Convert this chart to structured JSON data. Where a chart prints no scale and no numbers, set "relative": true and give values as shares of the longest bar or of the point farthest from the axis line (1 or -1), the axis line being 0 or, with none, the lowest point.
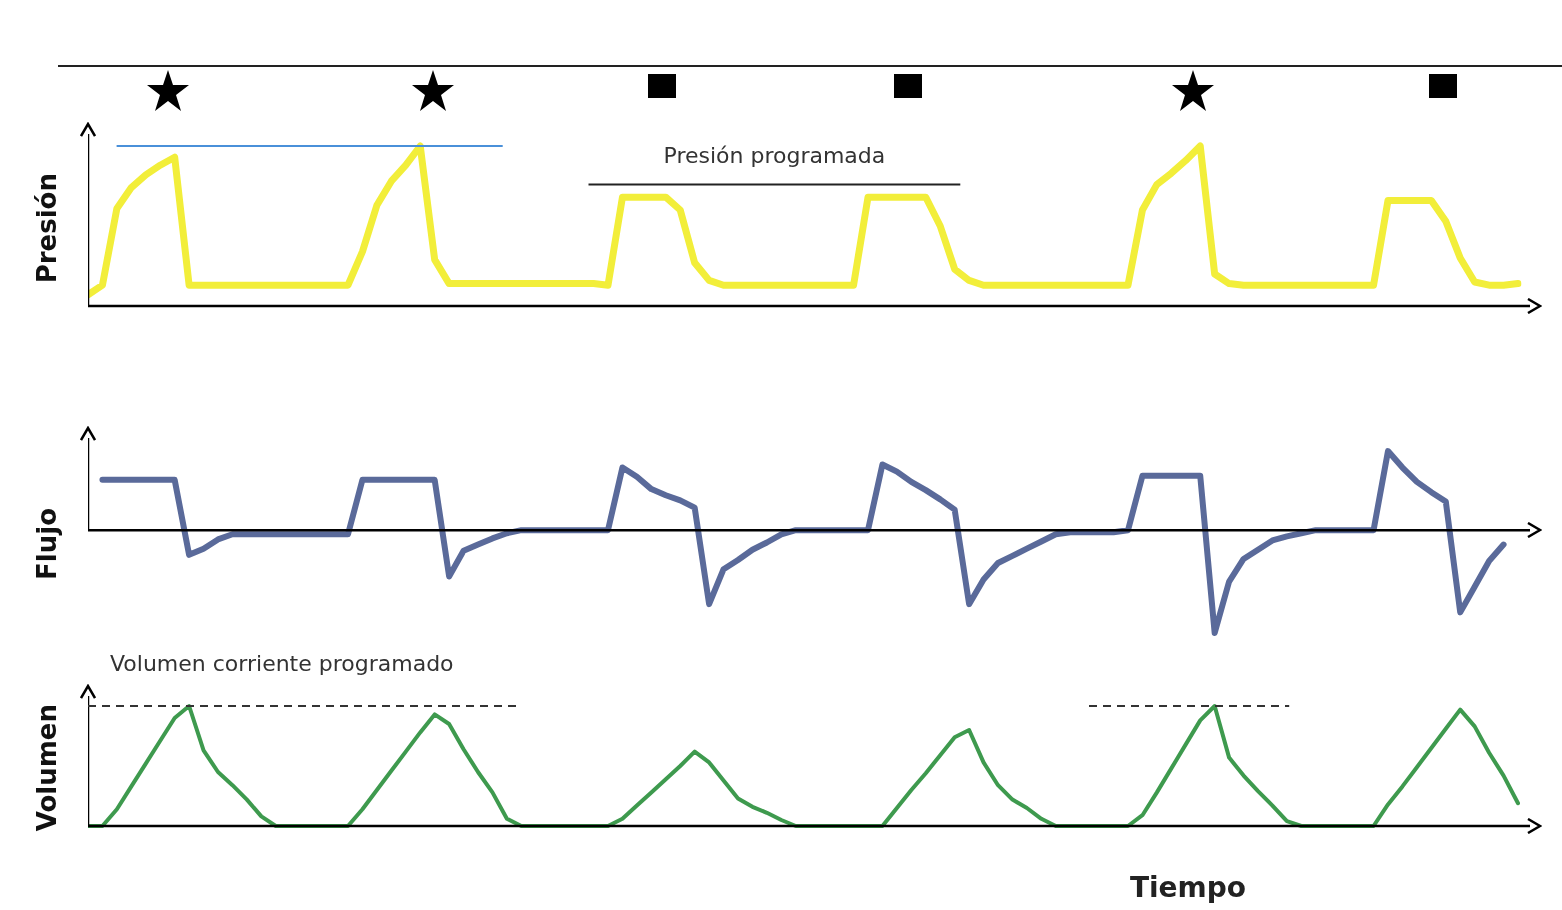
{
  "chart_data": [
    {
      "type": "line",
      "relative": true,
      "ylabel": "Presión",
      "tick_labels": false,
      "marker": "none",
      "categories": [
        null,
        null,
        null,
        null,
        null,
        null,
        null,
        null,
        null,
        null,
        null,
        null,
        null,
        null,
        null,
        null,
        null,
        null,
        null,
        null,
        null,
        null,
        null,
        null,
        null,
        null,
        null,
        null,
        null,
        null,
        null,
        null,
        null,
        null,
        null,
        null,
        null,
        null,
        null,
        null,
        null,
        null,
        null,
        null,
        null,
        null,
        null,
        null,
        null,
        null,
        null,
        null,
        null,
        null,
        null,
        null,
        null,
        null,
        null,
        null,
        null,
        null,
        null,
        null,
        null,
        null,
        null,
        null,
        null,
        null,
        null,
        null,
        null,
        null,
        null,
        null,
        null,
        null,
        null,
        null,
        null,
        null,
        null,
        null,
        null,
        null,
        null,
        null,
        null,
        null,
        null,
        null,
        null,
        null,
        null,
        null,
        null,
        null,
        null,
        null
      ],
      "ref_lines": [
        {
          "axis": "y",
          "value": 1.0,
          "color": "#4a90d9"
        },
        {
          "axis": "y",
          "value": 0.76,
          "label": "Presión programada",
          "color": "#222222"
        }
      ],
      "series": [
        {
          "color": "#f2ee3a",
          "values": [
            0.07,
            0.13,
            0.61,
            0.74,
            0.82,
            0.88,
            0.93,
            0.13,
            0.13,
            0.13,
            0.13,
            0.13,
            0.13,
            0.13,
            0.13,
            0.13,
            0.13,
            0.13,
            0.13,
            0.34,
            0.63,
            0.78,
            0.88,
            1.0,
            0.29,
            0.14,
            0.14,
            0.14,
            0.14,
            0.14,
            0.14,
            0.14,
            0.14,
            0.14,
            0.14,
            0.14,
            0.13,
            0.68,
            0.68,
            0.68,
            0.68,
            0.6,
            0.27,
            0.16,
            0.13,
            0.13,
            0.13,
            0.13,
            0.13,
            0.13,
            0.13,
            0.13,
            0.13,
            0.13,
            0.68,
            0.68,
            0.68,
            0.68,
            0.68,
            0.5,
            0.23,
            0.16,
            0.13,
            0.13,
            0.13,
            0.13,
            0.13,
            0.13,
            0.13,
            0.13,
            0.13,
            0.13,
            0.13,
            0.6,
            0.76,
            0.83,
            0.91,
            1.0,
            0.2,
            0.14,
            0.13,
            0.13,
            0.13,
            0.13,
            0.13,
            0.13,
            0.13,
            0.13,
            0.13,
            0.13,
            0.66,
            0.66,
            0.66,
            0.66,
            0.53,
            0.3,
            0.15,
            0.13,
            0.13,
            0.14
          ]
        }
      ]
    },
    {
      "type": "line",
      "relative": true,
      "ylabel": "Flujo",
      "tick_labels": false,
      "marker": "none",
      "categories": [
        null,
        null,
        null,
        null,
        null,
        null,
        null,
        null,
        null,
        null,
        null,
        null,
        null,
        null,
        null,
        null,
        null,
        null,
        null,
        null,
        null,
        null,
        null,
        null,
        null,
        null,
        null,
        null,
        null,
        null,
        null,
        null,
        null,
        null,
        null,
        null,
        null,
        null,
        null,
        null,
        null,
        null,
        null,
        null,
        null,
        null,
        null,
        null,
        null,
        null,
        null,
        null,
        null,
        null,
        null,
        null,
        null,
        null,
        null,
        null,
        null,
        null,
        null,
        null,
        null,
        null,
        null,
        null,
        null,
        null,
        null,
        null,
        null,
        null,
        null,
        null,
        null,
        null,
        null,
        null,
        null,
        null,
        null,
        null,
        null,
        null,
        null,
        null,
        null,
        null,
        null,
        null,
        null,
        null,
        null,
        null,
        null,
        null,
        null,
        null
      ],
      "series": [
        {
          "color": "#5a6a9a",
          "values": [
            null,
            0.49,
            0.49,
            0.49,
            0.49,
            0.49,
            0.49,
            -0.24,
            -0.18,
            -0.09,
            -0.04,
            -0.04,
            -0.04,
            -0.04,
            -0.04,
            -0.04,
            -0.04,
            -0.04,
            -0.04,
            0.49,
            0.49,
            0.49,
            0.49,
            0.49,
            0.49,
            -0.45,
            -0.2,
            -0.14,
            -0.08,
            -0.03,
            0,
            0,
            0,
            0,
            0,
            0,
            0,
            0.61,
            0.52,
            0.4,
            0.34,
            0.29,
            0.22,
            -0.72,
            -0.38,
            -0.29,
            -0.19,
            -0.12,
            -0.04,
            0,
            0,
            0,
            0,
            0,
            0,
            0.64,
            0.57,
            0.47,
            0.39,
            0.3,
            0.2,
            -0.72,
            -0.48,
            -0.32,
            -0.25,
            -0.18,
            -0.11,
            -0.04,
            -0.02,
            -0.02,
            -0.02,
            -0.02,
            0,
            0.53,
            0.53,
            0.53,
            0.53,
            0.53,
            -1,
            -0.5,
            -0.28,
            -0.19,
            -0.1,
            -0.06,
            -0.03,
            0,
            0,
            0,
            0,
            0,
            0.77,
            0.61,
            0.47,
            0.37,
            0.28,
            -0.8,
            -0.55,
            -0.3,
            -0.14,
            null
          ]
        }
      ]
    },
    {
      "type": "line",
      "relative": true,
      "ylabel": "Volumen",
      "xlabel": "Tiempo",
      "tick_labels": false,
      "marker": "none",
      "categories": [
        null,
        null,
        null,
        null,
        null,
        null,
        null,
        null,
        null,
        null,
        null,
        null,
        null,
        null,
        null,
        null,
        null,
        null,
        null,
        null,
        null,
        null,
        null,
        null,
        null,
        null,
        null,
        null,
        null,
        null,
        null,
        null,
        null,
        null,
        null,
        null,
        null,
        null,
        null,
        null,
        null,
        null,
        null,
        null,
        null,
        null,
        null,
        null,
        null,
        null,
        null,
        null,
        null,
        null,
        null,
        null,
        null,
        null,
        null,
        null,
        null,
        null,
        null,
        null,
        null,
        null,
        null,
        null,
        null,
        null,
        null,
        null,
        null,
        null,
        null,
        null,
        null,
        null,
        null,
        null,
        null,
        null,
        null,
        null,
        null,
        null,
        null,
        null,
        null,
        null,
        null,
        null,
        null,
        null,
        null,
        null,
        null,
        null,
        null,
        null
      ],
      "ref_lines": [
        {
          "axis": "y",
          "value": 1.0,
          "label": "Volumen corriente programado",
          "color": "#333333",
          "line_style": "dashed"
        }
      ],
      "series": [
        {
          "color": "#3e9a4e",
          "values": [
            0,
            0,
            0.14,
            0.33,
            0.52,
            0.71,
            0.9,
            1.0,
            0.63,
            0.45,
            0.34,
            0.22,
            0.08,
            0,
            0,
            0,
            0,
            0,
            0,
            0.14,
            0.3,
            0.46,
            0.62,
            0.78,
            0.93,
            0.85,
            0.64,
            0.45,
            0.28,
            0.06,
            0,
            0,
            0,
            0,
            0,
            0,
            0,
            0.06,
            0.17,
            0.28,
            0.39,
            0.5,
            0.62,
            0.53,
            0.38,
            0.23,
            0.16,
            0.11,
            0.05,
            0,
            0,
            0,
            0,
            0,
            0,
            0,
            0.15,
            0.3,
            0.44,
            0.59,
            0.74,
            0.8,
            0.53,
            0.34,
            0.22,
            0.15,
            0.06,
            0,
            0,
            0,
            0,
            0,
            0,
            0.09,
            0.28,
            0.48,
            0.68,
            0.88,
            1.0,
            0.57,
            0.42,
            0.29,
            0.17,
            0.04,
            0,
            0,
            0,
            0,
            0,
            0,
            0.18,
            0.33,
            0.49,
            0.65,
            0.81,
            0.97,
            0.83,
            0.61,
            0.42,
            0.19
          ]
        }
      ]
    }
  ]
}
